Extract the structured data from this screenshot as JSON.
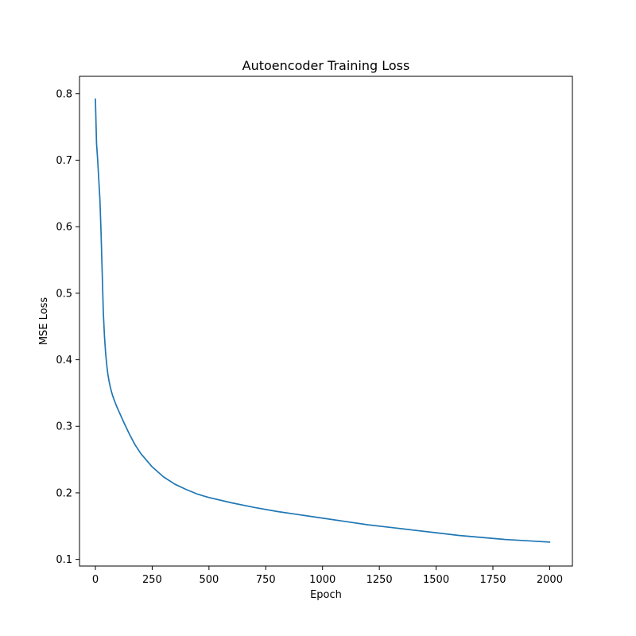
{
  "chart_data": {
    "type": "line",
    "title": "Autoencoder Training Loss",
    "xlabel": "Epoch",
    "ylabel": "MSE Loss",
    "xlim": [
      -70,
      2100
    ],
    "ylim": [
      0.09,
      0.826
    ],
    "x_ticks": [
      0,
      250,
      500,
      750,
      1000,
      1250,
      1500,
      1750,
      2000
    ],
    "x_tick_labels": [
      "0",
      "250",
      "500",
      "750",
      "1000",
      "1250",
      "1500",
      "1750",
      "2000"
    ],
    "y_ticks": [
      0.1,
      0.2,
      0.3,
      0.4,
      0.5,
      0.6,
      0.7,
      0.8
    ],
    "y_tick_labels": [
      "0.1",
      "0.2",
      "0.3",
      "0.4",
      "0.5",
      "0.6",
      "0.7",
      "0.8"
    ],
    "grid": false,
    "series": [
      {
        "color": "#1f77b4",
        "x": [
          0,
          5,
          10,
          15,
          20,
          25,
          30,
          35,
          40,
          45,
          50,
          55,
          60,
          65,
          70,
          75,
          80,
          90,
          100,
          125,
          150,
          175,
          200,
          250,
          300,
          350,
          400,
          450,
          500,
          600,
          700,
          800,
          900,
          1000,
          1100,
          1200,
          1300,
          1400,
          1500,
          1600,
          1700,
          1800,
          1900,
          2000
        ],
        "y": [
          0.792,
          0.725,
          0.7,
          0.67,
          0.64,
          0.59,
          0.53,
          0.47,
          0.435,
          0.41,
          0.392,
          0.378,
          0.368,
          0.36,
          0.353,
          0.347,
          0.342,
          0.333,
          0.325,
          0.306,
          0.288,
          0.272,
          0.259,
          0.239,
          0.224,
          0.213,
          0.205,
          0.198,
          0.193,
          0.185,
          0.178,
          0.172,
          0.167,
          0.162,
          0.157,
          0.152,
          0.148,
          0.144,
          0.14,
          0.136,
          0.133,
          0.13,
          0.128,
          0.126
        ]
      }
    ]
  }
}
